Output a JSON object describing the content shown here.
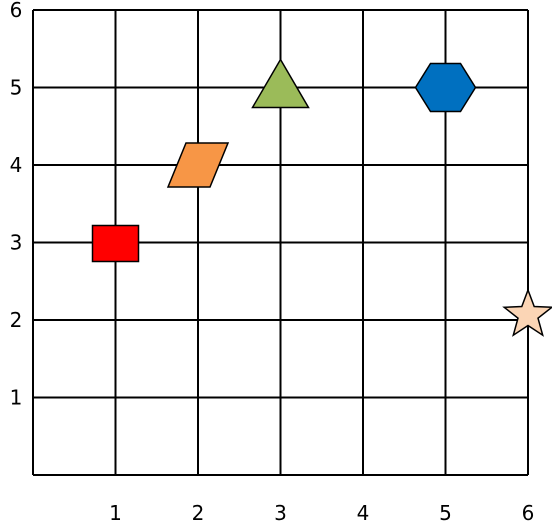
{
  "grid": {
    "x_ticks": [
      "1",
      "2",
      "3",
      "4",
      "5",
      "6"
    ],
    "y_ticks": [
      "1",
      "2",
      "3",
      "4",
      "5",
      "6"
    ],
    "range": {
      "x": [
        0,
        6
      ],
      "y": [
        0,
        6
      ]
    }
  },
  "shapes": [
    {
      "id": "square",
      "kind": "square",
      "x": 1,
      "y": 3,
      "color": "#ff0000"
    },
    {
      "id": "parallelogram",
      "kind": "parallelogram",
      "x": 2,
      "y": 4,
      "color": "#f79646"
    },
    {
      "id": "triangle",
      "kind": "triangle",
      "x": 3,
      "y": 5,
      "color": "#9bbb59"
    },
    {
      "id": "hexagon",
      "kind": "hexagon",
      "x": 5,
      "y": 5,
      "color": "#0070c0"
    },
    {
      "id": "star",
      "kind": "star",
      "x": 6,
      "y": 2,
      "color": "#fbd5b5"
    }
  ]
}
